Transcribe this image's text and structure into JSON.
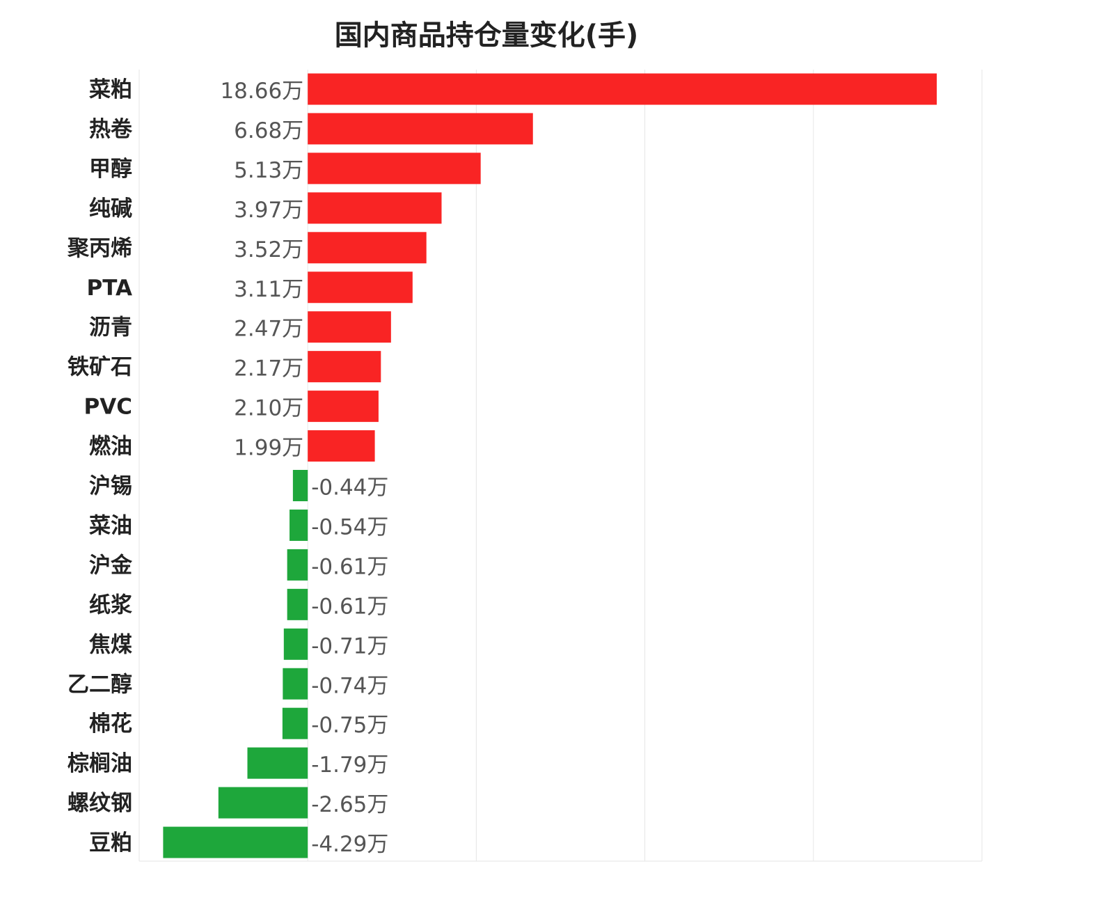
{
  "chart_data": {
    "type": "bar",
    "orientation": "horizontal",
    "title": "国内商品持仓量变化(手)",
    "unit": "万",
    "categories": [
      "菜粕",
      "热卷",
      "甲醇",
      "纯碱",
      "聚丙烯",
      "PTA",
      "沥青",
      "铁矿石",
      "PVC",
      "燃油",
      "沪锡",
      "菜油",
      "沪金",
      "纸浆",
      "焦煤",
      "乙二醇",
      "棉花",
      "棕榈油",
      "螺纹钢",
      "豆粕"
    ],
    "values": [
      18.66,
      6.68,
      5.13,
      3.97,
      3.52,
      3.11,
      2.47,
      2.17,
      2.1,
      1.99,
      -0.44,
      -0.54,
      -0.61,
      -0.61,
      -0.71,
      -0.74,
      -0.75,
      -1.79,
      -2.65,
      -4.29
    ],
    "value_labels": [
      "18.66万",
      "6.68万",
      "5.13万",
      "3.97万",
      "3.52万",
      "3.11万",
      "2.47万",
      "2.17万",
      "2.10万",
      "1.99万",
      "-0.44万",
      "-0.54万",
      "-0.61万",
      "-0.61万",
      "-0.71万",
      "-0.74万",
      "-0.75万",
      "-1.79万",
      "-2.65万",
      "-4.29万"
    ],
    "xlim": [
      -5,
      20
    ],
    "grid_interval": 5,
    "grid": true,
    "colors": {
      "positive": "#F92424",
      "negative": "#1EA73B",
      "grid": "#E6E6E6"
    }
  }
}
